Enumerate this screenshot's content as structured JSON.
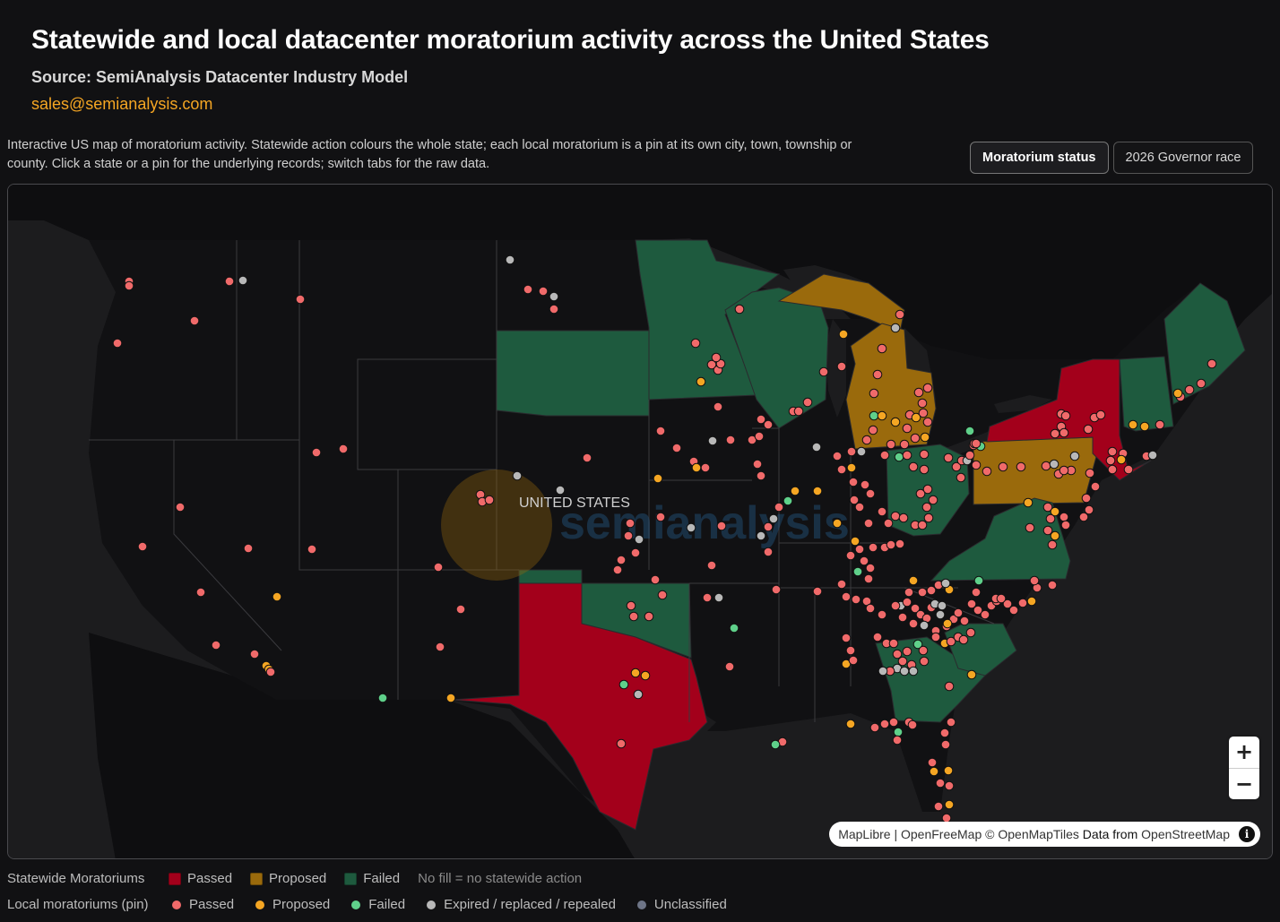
{
  "header": {
    "title": "Statewide and local datacenter moratorium activity across the United States",
    "source": "Source: SemiAnalysis Datacenter Industry Model",
    "email": "sales@semianalysis.com"
  },
  "description": "Interactive US map of moratorium activity. Statewide action colours the whole state; each local moratorium is a pin at its own city, town, township or county. Click a state or a pin for the underlying records; switch tabs for the raw data.",
  "tabs": [
    {
      "label": "Moratorium status",
      "active": true
    },
    {
      "label": "2026 Governor race",
      "active": false
    }
  ],
  "map": {
    "country_label": "UNITED STATES",
    "watermark": "semianalysis",
    "zoom_in": "+",
    "zoom_out": "−",
    "attribution": {
      "maplibre": "MapLibre",
      "sep": " | ",
      "openfreemap": "OpenFreeMap",
      "copy": " © ",
      "omt": "OpenMapTiles",
      "data_from": " Data from ",
      "osm": "OpenStreetMap",
      "info": "i"
    }
  },
  "colors": {
    "state_passed": "#a3001b",
    "state_proposed": "#9a6a0c",
    "state_failed": "#1e5a3e",
    "pin_passed": "#f06a6a",
    "pin_proposed": "#f5a623",
    "pin_failed": "#5fd08a",
    "pin_expired": "#b8b8b8",
    "pin_unclassified": "#6e7587"
  },
  "legend": {
    "statewide_label": "Statewide Moratoriums",
    "statewide": [
      {
        "label": "Passed",
        "color": "#a3001b"
      },
      {
        "label": "Proposed",
        "color": "#9a6a0c"
      },
      {
        "label": "Failed",
        "color": "#1e5a3e"
      }
    ],
    "no_fill_note": "No fill = no statewide action",
    "local_label": "Local moratoriums (pin)",
    "local": [
      {
        "label": "Passed",
        "color": "#f06a6a"
      },
      {
        "label": "Proposed",
        "color": "#f5a623"
      },
      {
        "label": "Failed",
        "color": "#5fd08a"
      },
      {
        "label": "Expired / replaced / repealed",
        "color": "#b8b8b8"
      },
      {
        "label": "Unclassified",
        "color": "#6e7587"
      }
    ]
  }
}
